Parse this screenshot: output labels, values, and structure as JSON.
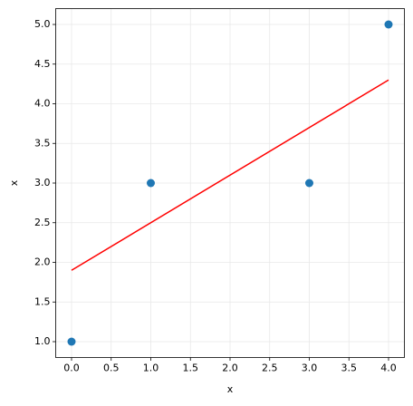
{
  "chart_data": {
    "type": "scatter",
    "xlabel": "x",
    "ylabel": "x",
    "series": [
      {
        "type": "scatter",
        "color": "#1f77b4",
        "x": [
          0,
          1,
          3,
          4
        ],
        "values": [
          1,
          3,
          3,
          5
        ]
      },
      {
        "type": "line",
        "color": "#ff0000",
        "x": [
          0,
          4
        ],
        "values": [
          1.9,
          4.3
        ]
      }
    ],
    "xlim": [
      -0.2,
      4.2
    ],
    "ylim": [
      0.8,
      5.2
    ],
    "xticks": [
      {
        "value": 0,
        "label": "0.0"
      },
      {
        "value": 0.5,
        "label": "0.5"
      },
      {
        "value": 1,
        "label": "1.0"
      },
      {
        "value": 1.5,
        "label": "1.5"
      },
      {
        "value": 2,
        "label": "2.0"
      },
      {
        "value": 2.5,
        "label": "2.5"
      },
      {
        "value": 3,
        "label": "3.0"
      },
      {
        "value": 3.5,
        "label": "3.5"
      },
      {
        "value": 4,
        "label": "4.0"
      }
    ],
    "yticks": [
      {
        "value": 1,
        "label": "1.0"
      },
      {
        "value": 1.5,
        "label": "1.5"
      },
      {
        "value": 2,
        "label": "2.0"
      },
      {
        "value": 2.5,
        "label": "2.5"
      },
      {
        "value": 3,
        "label": "3.0"
      },
      {
        "value": 3.5,
        "label": "3.5"
      },
      {
        "value": 4,
        "label": "4.0"
      },
      {
        "value": 4.5,
        "label": "4.5"
      },
      {
        "value": 5,
        "label": "5.0"
      }
    ],
    "grid": true
  }
}
